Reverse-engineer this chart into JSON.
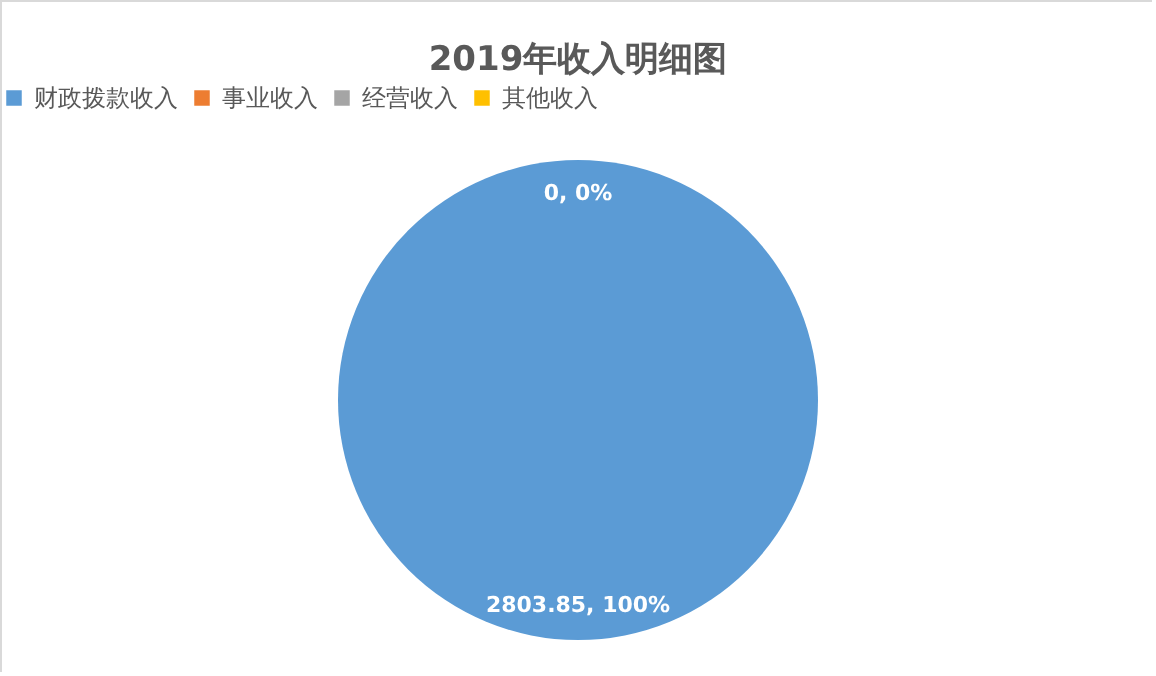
{
  "chart_data": {
    "type": "pie",
    "title": "2019年收入明细图",
    "categories": [
      "财政拨款收入",
      "事业收入",
      "经营收入",
      "其他收入"
    ],
    "values": [
      2803.85,
      0,
      0,
      0
    ],
    "colors": [
      "#5b9bd5",
      "#ed7d31",
      "#a5a5a5",
      "#ffc000"
    ],
    "value_labels": [
      "2803.85, 100%",
      "0, 0%",
      null,
      null
    ],
    "legend": "top"
  }
}
